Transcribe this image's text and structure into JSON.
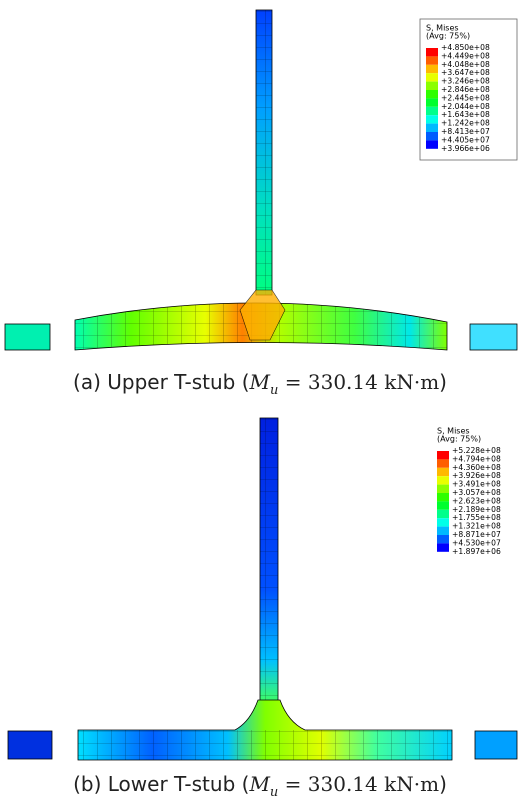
{
  "figures": [
    {
      "legend": {
        "title": "S, Mises",
        "subtitle": "(Avg: 75%)",
        "labels": [
          "+4.850e+08",
          "+4.449e+08",
          "+4.048e+08",
          "+3.647e+08",
          "+3.246e+08",
          "+2.846e+08",
          "+2.445e+08",
          "+2.044e+08",
          "+1.643e+08",
          "+1.242e+08",
          "+8.413e+07",
          "+4.405e+07",
          "+3.966e+06"
        ]
      },
      "caption": {
        "prefix": "(a) Upper T-stub (",
        "symbol": "M",
        "subscript": "u",
        "rest": " = 330.14 kN·m",
        "close": ")"
      }
    },
    {
      "legend": {
        "title": "S, Mises",
        "subtitle": "(Avg: 75%)",
        "labels": [
          "+5.228e+08",
          "+4.794e+08",
          "+4.360e+08",
          "+3.926e+08",
          "+3.491e+08",
          "+3.057e+08",
          "+2.623e+08",
          "+2.189e+08",
          "+1.755e+08",
          "+1.321e+08",
          "+8.871e+07",
          "+4.530e+07",
          "+1.897e+06"
        ]
      },
      "caption": {
        "prefix": "(b) Lower T-stub (",
        "symbol": "M",
        "subscript": "u",
        "rest": " = 330.14 kN·m",
        "close": ")"
      }
    }
  ]
}
